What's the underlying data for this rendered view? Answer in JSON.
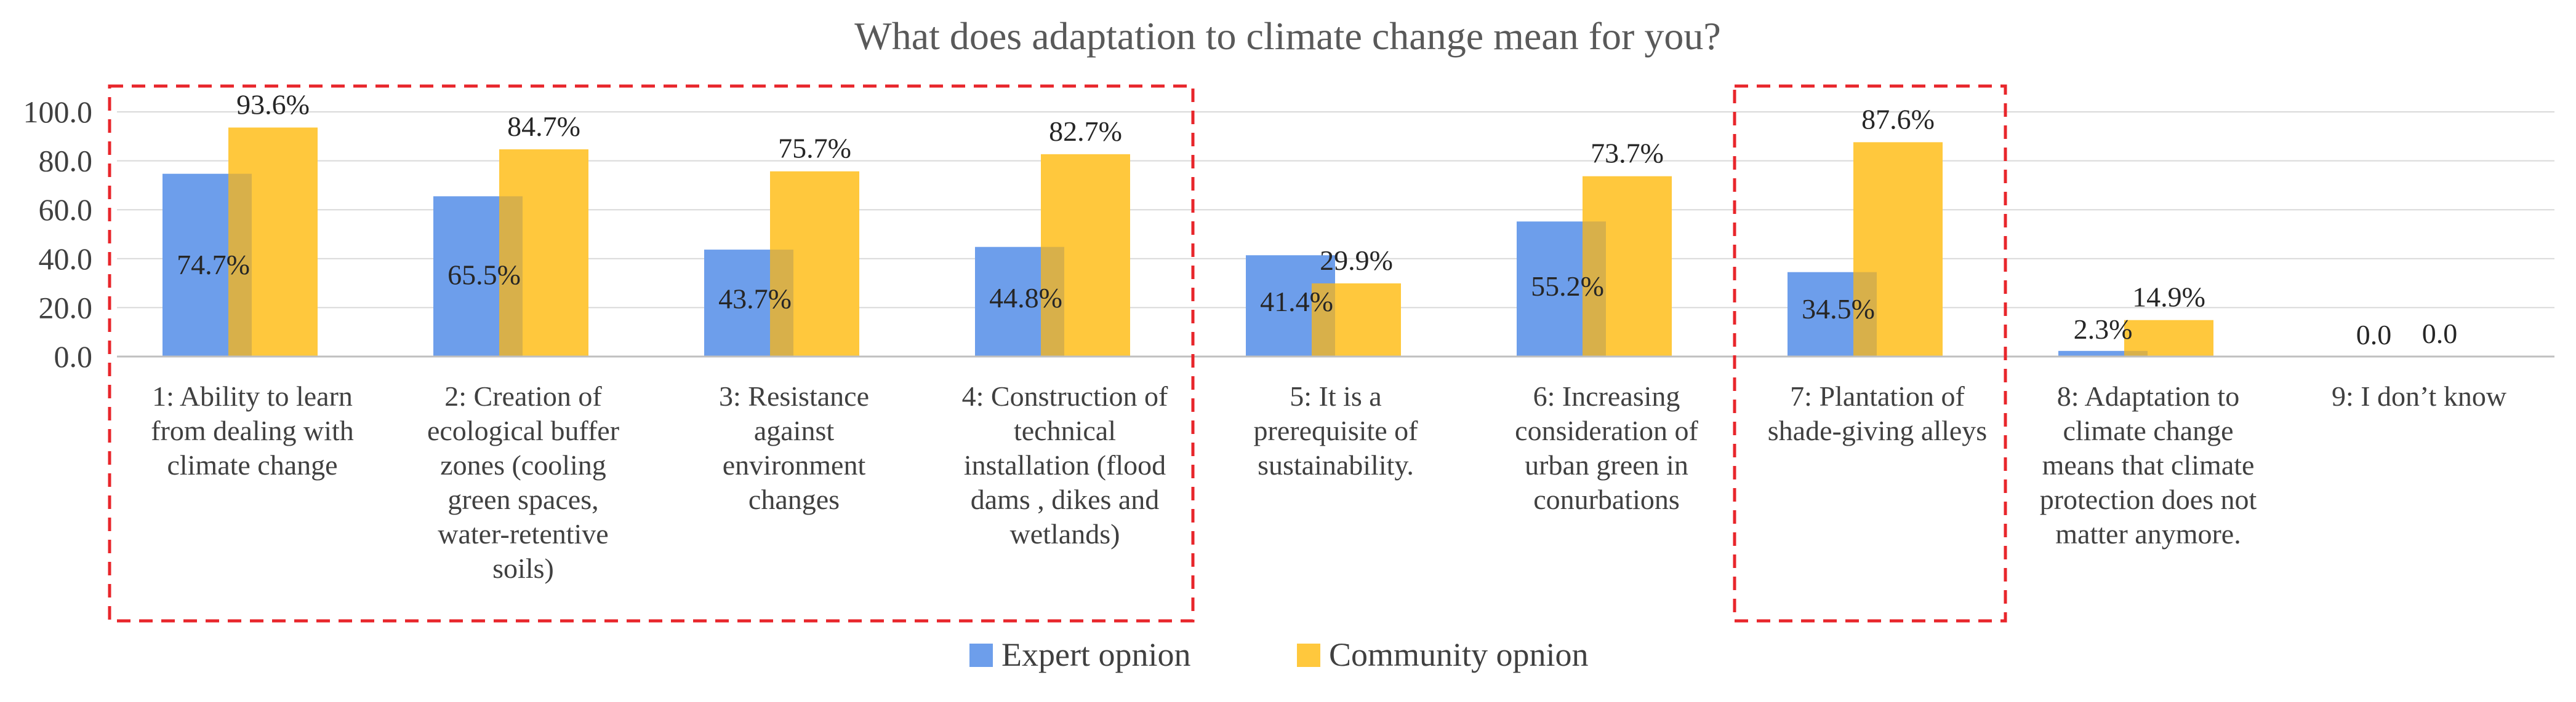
{
  "chart_data": {
    "type": "bar",
    "title": "What does adaptation to climate change mean for you?",
    "xlabel": "",
    "ylabel": "",
    "ylim": [
      0,
      100
    ],
    "yticks": [
      "0.0",
      "20.0",
      "40.0",
      "60.0",
      "80.0",
      "100.0"
    ],
    "grid": true,
    "legend_position": "bottom-center",
    "categories": [
      [
        "1: Ability to learn",
        "from dealing with",
        "climate change"
      ],
      [
        "2: Creation of",
        "ecological buffer",
        "zones (cooling",
        "green spaces,",
        "water-retentive",
        "soils)"
      ],
      [
        "3: Resistance",
        "against",
        "environment",
        "changes"
      ],
      [
        "4: Construction of",
        "technical",
        "installation (flood",
        "dams , dikes and",
        "wetlands)"
      ],
      [
        "5: It is a",
        "prerequisite of",
        "sustainability."
      ],
      [
        "6: Increasing",
        "consideration of",
        "urban green in",
        "conurbations"
      ],
      [
        "7: Plantation of",
        "shade-giving alleys"
      ],
      [
        "8: Adaptation to",
        "climate change",
        "means that climate",
        "protection does not",
        "matter anymore."
      ],
      [
        "9: I don’t know"
      ]
    ],
    "series": [
      {
        "name": "Expert opnion",
        "color": "#6d9eeb",
        "values": [
          74.7,
          65.5,
          43.7,
          44.8,
          41.4,
          55.2,
          34.5,
          2.3,
          0.0
        ],
        "labels": [
          "74.7%",
          "65.5%",
          "43.7%",
          "44.8%",
          "41.4%",
          "55.2%",
          "34.5%",
          "2.3%",
          "0.0"
        ]
      },
      {
        "name": "Community opnion",
        "color": "#ffc83d",
        "values": [
          93.6,
          84.7,
          75.7,
          82.7,
          29.9,
          73.7,
          87.6,
          14.9,
          0.0
        ],
        "labels": [
          "93.6%",
          "84.7%",
          "75.7%",
          "82.7%",
          "29.9%",
          "73.7%",
          "87.6%",
          "14.9%",
          "0.0"
        ]
      }
    ],
    "highlight_groups": [
      [
        1,
        4
      ],
      [
        7,
        7
      ]
    ],
    "highlight_color": "#e8262b"
  }
}
